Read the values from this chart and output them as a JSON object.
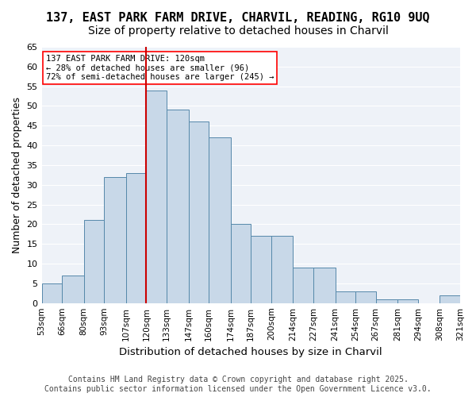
{
  "title1": "137, EAST PARK FARM DRIVE, CHARVIL, READING, RG10 9UQ",
  "title2": "Size of property relative to detached houses in Charvil",
  "xlabel": "Distribution of detached houses by size in Charvil",
  "ylabel": "Number of detached properties",
  "annotation_line1": "137 EAST PARK FARM DRIVE: 120sqm",
  "annotation_line2": "← 28% of detached houses are smaller (96)",
  "annotation_line3": "72% of semi-detached houses are larger (245) →",
  "bin_edges": [
    53,
    66,
    80,
    93,
    107,
    120,
    133,
    147,
    160,
    174,
    187,
    200,
    214,
    227,
    241,
    254,
    267,
    281,
    294,
    308,
    321
  ],
  "bar_heights": [
    5,
    7,
    21,
    32,
    33,
    54,
    49,
    46,
    42,
    20,
    17,
    17,
    9,
    9,
    3,
    3,
    1,
    1,
    0,
    2
  ],
  "bar_color": "#c8d8e8",
  "bar_edge_color": "#5588aa",
  "vline_color": "#cc0000",
  "vline_x": 120,
  "ylim": [
    0,
    65
  ],
  "yticks": [
    0,
    5,
    10,
    15,
    20,
    25,
    30,
    35,
    40,
    45,
    50,
    55,
    60,
    65
  ],
  "background_color": "#eef2f8",
  "grid_color": "#ffffff",
  "footer1": "Contains HM Land Registry data © Crown copyright and database right 2025.",
  "footer2": "Contains public sector information licensed under the Open Government Licence v3.0.",
  "title_fontsize": 11,
  "subtitle_fontsize": 10,
  "axis_label_fontsize": 9,
  "tick_fontsize": 8,
  "annotation_fontsize": 7.5,
  "footer_fontsize": 7
}
